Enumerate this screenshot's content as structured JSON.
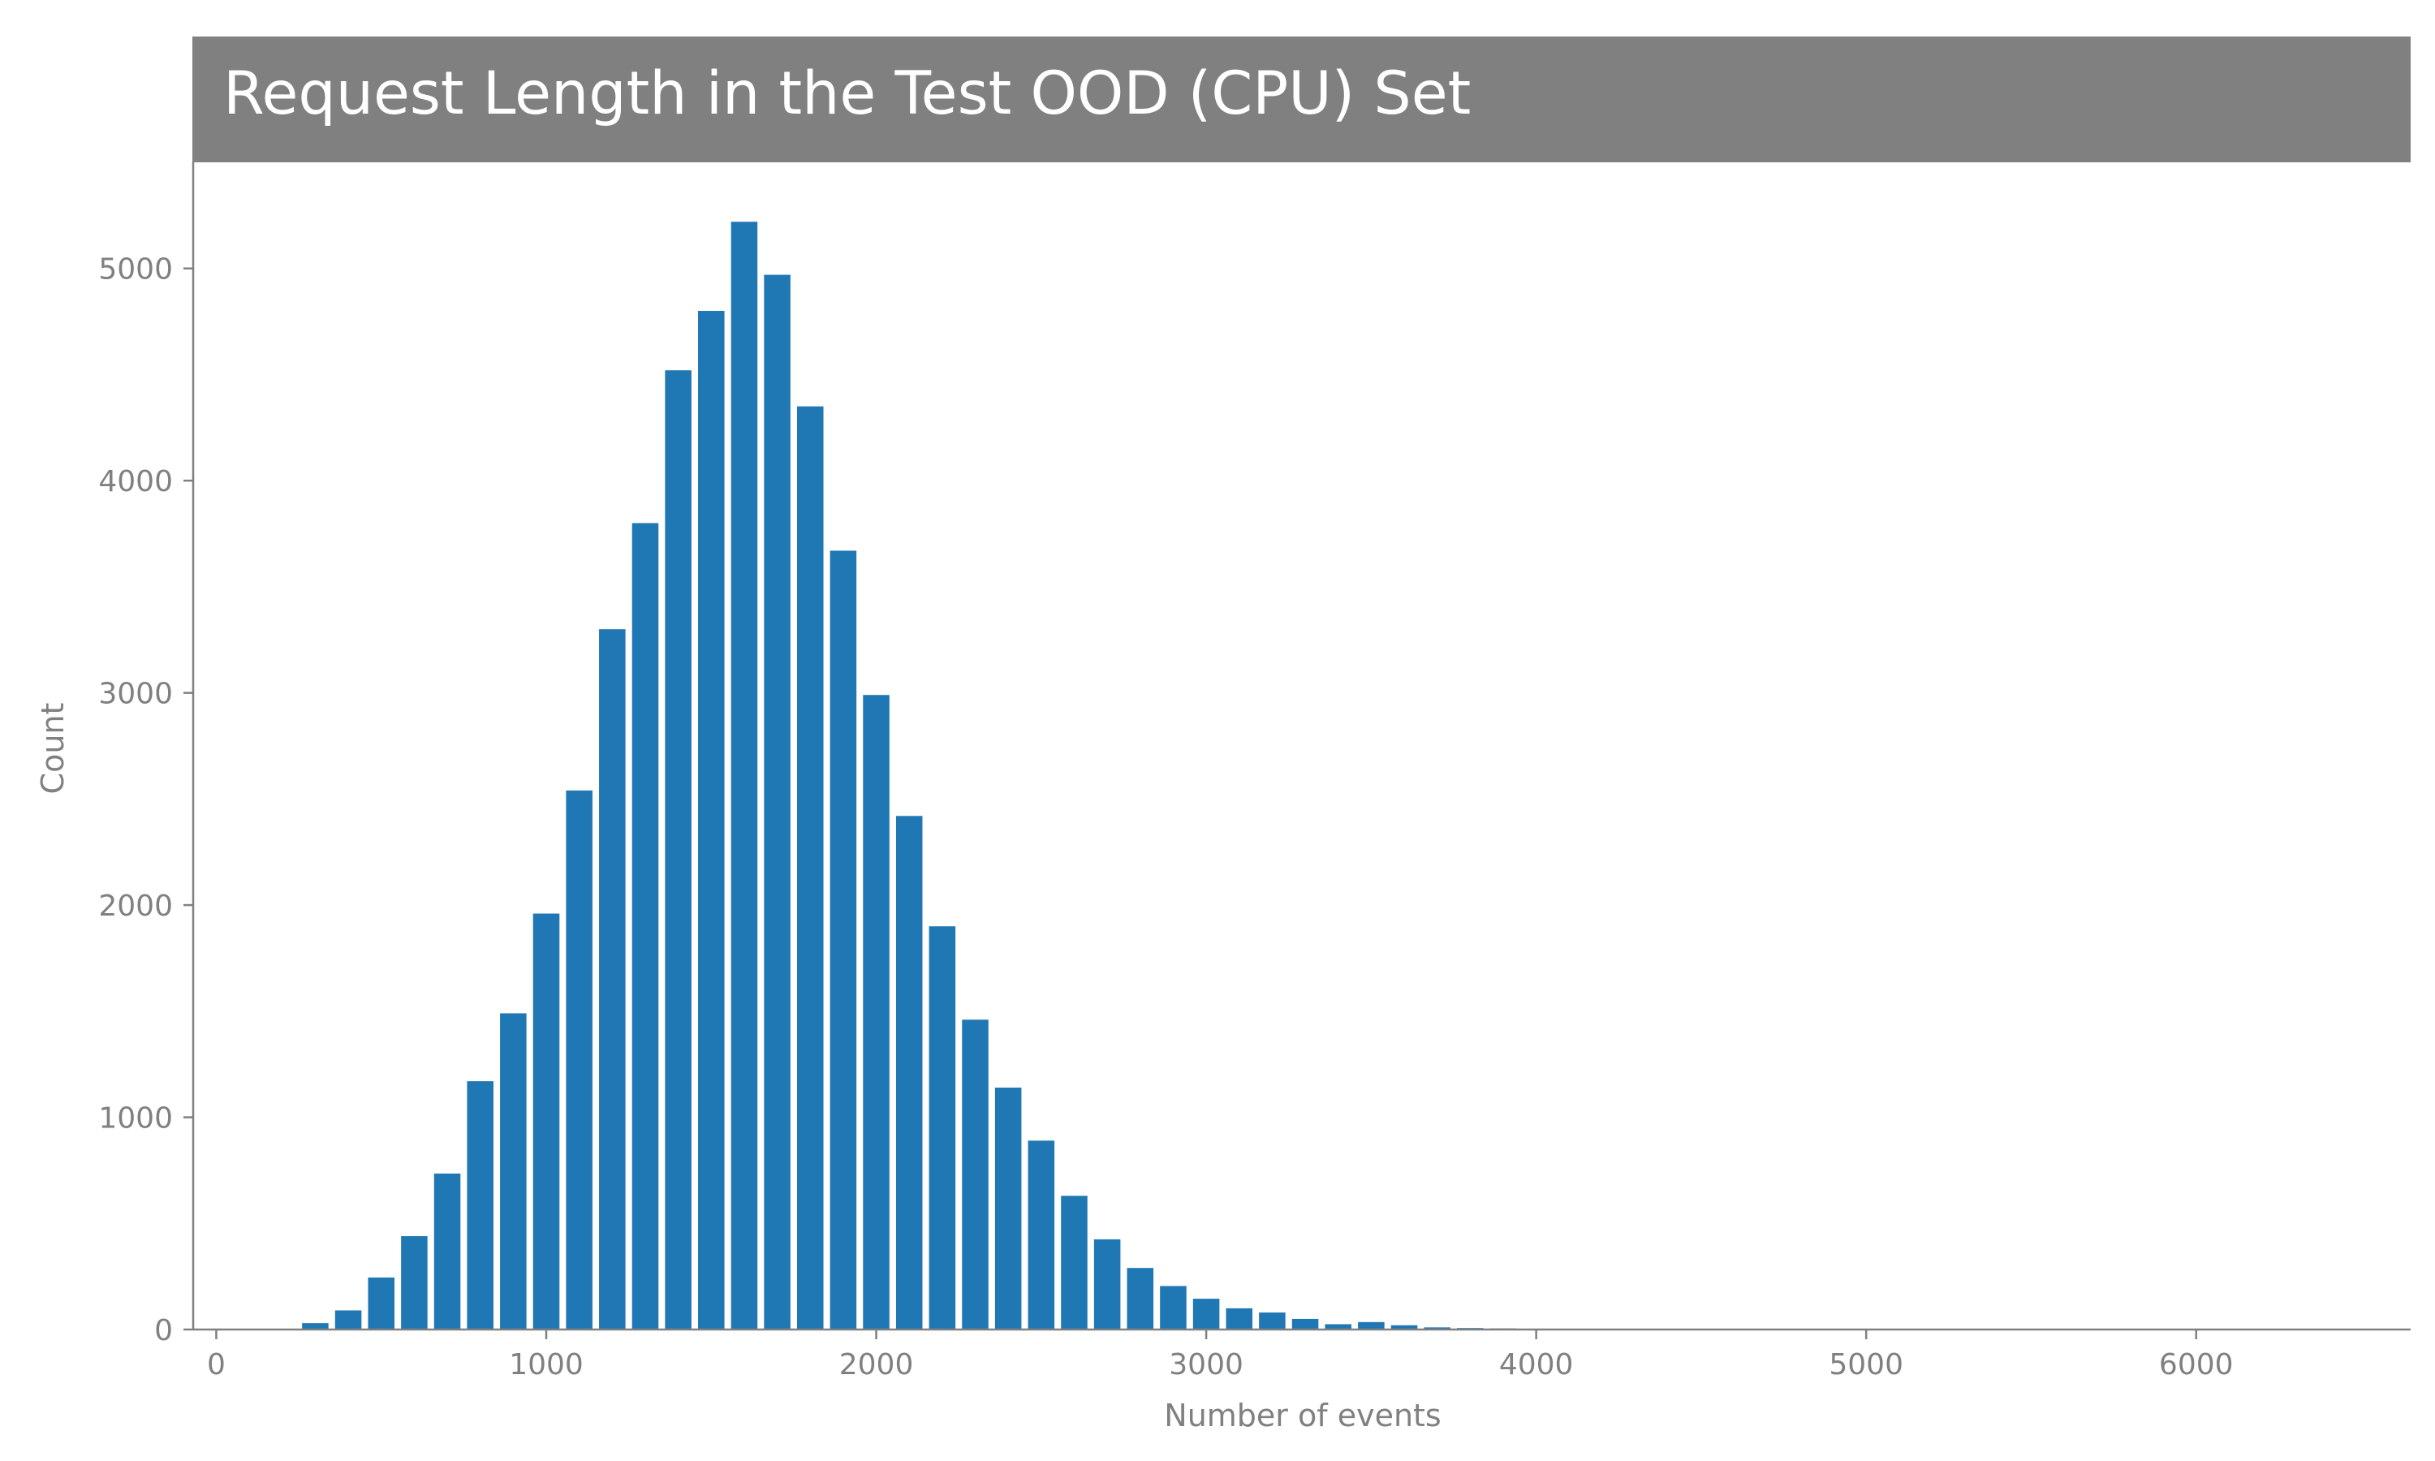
{
  "chart_data": {
    "type": "bar",
    "title": "Request Length in the Test OOD (CPU) Set",
    "xlabel": "Number of events",
    "ylabel": "Count",
    "bin_width": 100,
    "bin_centers": [
      300,
      400,
      500,
      600,
      700,
      800,
      900,
      1000,
      1100,
      1200,
      1300,
      1400,
      1500,
      1600,
      1700,
      1800,
      1900,
      2000,
      2100,
      2200,
      2300,
      2400,
      2500,
      2600,
      2700,
      2800,
      2900,
      3000,
      3100,
      3200,
      3300,
      3400,
      3500,
      3600,
      3700,
      3800,
      3900,
      4000,
      4100,
      4200,
      4300,
      4400,
      4500,
      4600
    ],
    "values": [
      30,
      90,
      245,
      440,
      735,
      1170,
      1490,
      1960,
      2540,
      3300,
      3800,
      4520,
      4800,
      5220,
      4970,
      4350,
      3670,
      2990,
      2420,
      1900,
      1460,
      1140,
      890,
      630,
      425,
      290,
      205,
      145,
      100,
      80,
      50,
      25,
      35,
      20,
      10,
      7,
      5,
      3,
      2,
      1,
      1,
      1,
      1,
      1
    ],
    "xlim": [
      -70,
      6650
    ],
    "ylim": [
      0,
      5500
    ],
    "xticks": [
      0,
      1000,
      2000,
      3000,
      4000,
      5000,
      6000
    ],
    "yticks": [
      0,
      1000,
      2000,
      3000,
      4000,
      5000
    ],
    "grid": false,
    "colors": {
      "bar": "#1f77b4",
      "title_band": "#808080",
      "title_text": "#ffffff",
      "axis": "#808080",
      "text": "#808080"
    }
  }
}
